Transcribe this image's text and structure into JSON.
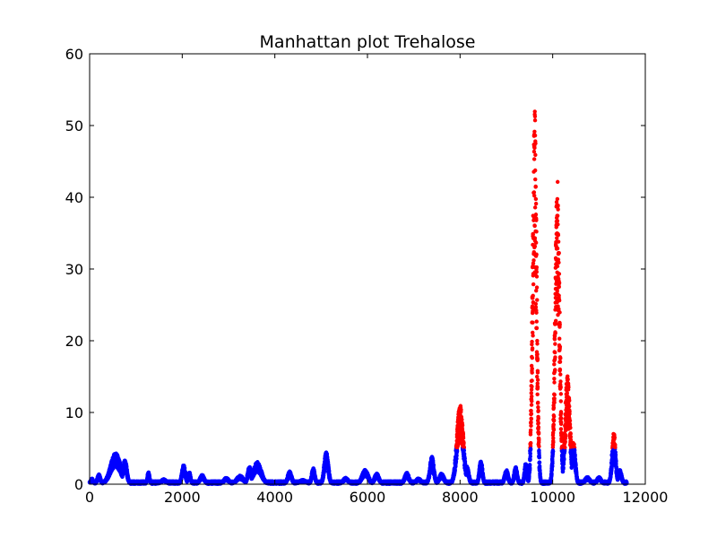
{
  "chart_data": {
    "type": "scatter",
    "title": "Manhattan plot Trehalose",
    "xlabel": "",
    "ylabel": "",
    "xlim": [
      0,
      12000
    ],
    "ylim": [
      0,
      60
    ],
    "x_ticks": [
      0,
      2000,
      4000,
      6000,
      8000,
      10000,
      12000
    ],
    "y_ticks": [
      0,
      10,
      20,
      30,
      40,
      50,
      60
    ],
    "grid": false,
    "legend": "none",
    "threshold": 5,
    "colors": {
      "below_threshold": "#0000ff",
      "above_threshold": "#ff0000",
      "axes": "#000000",
      "background": "#ffffff"
    },
    "point_count": 11600,
    "peaks": [
      {
        "x": 50,
        "y": 0.8,
        "w": 30
      },
      {
        "x": 200,
        "y": 1.4,
        "w": 35
      },
      {
        "x": 560,
        "y": 4.4,
        "w": 110
      },
      {
        "x": 760,
        "y": 3.5,
        "w": 45
      },
      {
        "x": 1270,
        "y": 1.7,
        "w": 25
      },
      {
        "x": 1600,
        "y": 0.7,
        "w": 60
      },
      {
        "x": 2030,
        "y": 2.7,
        "w": 40
      },
      {
        "x": 2150,
        "y": 1.8,
        "w": 30
      },
      {
        "x": 2430,
        "y": 1.3,
        "w": 50
      },
      {
        "x": 2950,
        "y": 0.9,
        "w": 60
      },
      {
        "x": 3250,
        "y": 1.2,
        "w": 80
      },
      {
        "x": 3450,
        "y": 2.5,
        "w": 40
      },
      {
        "x": 3620,
        "y": 3.1,
        "w": 90
      },
      {
        "x": 4320,
        "y": 1.8,
        "w": 45
      },
      {
        "x": 4600,
        "y": 0.6,
        "w": 80
      },
      {
        "x": 4830,
        "y": 2.3,
        "w": 35
      },
      {
        "x": 5110,
        "y": 4.6,
        "w": 45
      },
      {
        "x": 5530,
        "y": 0.9,
        "w": 60
      },
      {
        "x": 5950,
        "y": 2.0,
        "w": 70
      },
      {
        "x": 6200,
        "y": 1.5,
        "w": 50
      },
      {
        "x": 6850,
        "y": 1.6,
        "w": 50
      },
      {
        "x": 7100,
        "y": 0.8,
        "w": 60
      },
      {
        "x": 7390,
        "y": 3.9,
        "w": 45
      },
      {
        "x": 7600,
        "y": 1.5,
        "w": 55
      },
      {
        "x": 8000,
        "y": 11.3,
        "w": 70
      },
      {
        "x": 8150,
        "y": 2.5,
        "w": 40
      },
      {
        "x": 8450,
        "y": 3.4,
        "w": 35
      },
      {
        "x": 9000,
        "y": 2.0,
        "w": 40
      },
      {
        "x": 9200,
        "y": 2.4,
        "w": 35
      },
      {
        "x": 9420,
        "y": 3.0,
        "w": 30
      },
      {
        "x": 9610,
        "y": 52.3,
        "w": 45
      },
      {
        "x": 10100,
        "y": 42.9,
        "w": 50
      },
      {
        "x": 10320,
        "y": 15.3,
        "w": 55
      },
      {
        "x": 10450,
        "y": 6.0,
        "w": 40
      },
      {
        "x": 10750,
        "y": 1.0,
        "w": 60
      },
      {
        "x": 11000,
        "y": 1.0,
        "w": 50
      },
      {
        "x": 11320,
        "y": 7.2,
        "w": 40
      },
      {
        "x": 11450,
        "y": 2.0,
        "w": 40
      }
    ]
  }
}
